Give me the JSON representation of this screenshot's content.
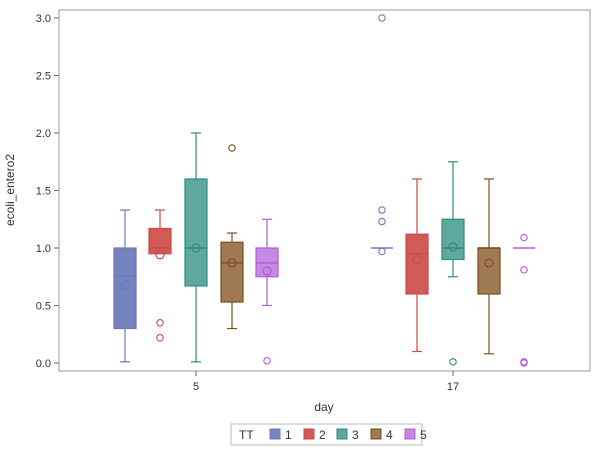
{
  "chart_data": {
    "type": "box",
    "xlabel": "day",
    "ylabel": "ecoli_entero2",
    "categories": [
      "5",
      "17"
    ],
    "ylim": [
      0,
      3
    ],
    "yticks": [
      "0.0",
      "0.5",
      "1.0",
      "1.5",
      "2.0",
      "2.5",
      "3.0"
    ],
    "ytick_values": [
      0,
      0.5,
      1.0,
      1.5,
      2.0,
      2.5,
      3.0
    ],
    "grid": false,
    "legend": {
      "title": "TT",
      "position": "bottom",
      "entries": [
        "1",
        "2",
        "3",
        "4",
        "5"
      ]
    },
    "series": [
      {
        "name": "1",
        "color": "#6b7ab5",
        "fill": "#7584bf",
        "boxes": [
          {
            "category": "5",
            "min": 0.01,
            "q1": 0.3,
            "median": 0.76,
            "q3": 1.0,
            "max": 1.33,
            "mean": 0.68,
            "outliers": []
          },
          {
            "category": "17",
            "min": 1.0,
            "q1": 1.0,
            "median": 1.0,
            "q3": 1.0,
            "max": 1.0,
            "mean": null,
            "outliers": [
              3.0,
              1.33,
              1.23,
              0.97
            ]
          }
        ]
      },
      {
        "name": "2",
        "color": "#c94a48",
        "fill": "#d15a57",
        "boxes": [
          {
            "category": "5",
            "min": 0.95,
            "q1": 0.95,
            "median": 1.0,
            "q3": 1.17,
            "max": 1.33,
            "mean": 0.94,
            "outliers": [
              0.35,
              0.22
            ]
          },
          {
            "category": "17",
            "min": 0.1,
            "q1": 0.6,
            "median": 0.95,
            "q3": 1.12,
            "max": 1.6,
            "mean": 0.9,
            "outliers": []
          }
        ]
      },
      {
        "name": "3",
        "color": "#2e8b80",
        "fill": "#5fa8a0",
        "boxes": [
          {
            "category": "5",
            "min": 0.01,
            "q1": 0.67,
            "median": 1.0,
            "q3": 1.6,
            "max": 2.0,
            "mean": 1.0,
            "outliers": []
          },
          {
            "category": "17",
            "min": 0.75,
            "q1": 0.9,
            "median": 1.0,
            "q3": 1.25,
            "max": 1.75,
            "mean": 1.01,
            "outliers": [
              0.01
            ]
          }
        ]
      },
      {
        "name": "4",
        "color": "#7a5020",
        "fill": "#a07a52",
        "boxes": [
          {
            "category": "5",
            "min": 0.3,
            "q1": 0.53,
            "median": 0.87,
            "q3": 1.05,
            "max": 1.13,
            "mean": 0.87,
            "outliers": [
              1.87
            ]
          },
          {
            "category": "17",
            "min": 0.08,
            "q1": 0.6,
            "median": 1.0,
            "q3": 1.0,
            "max": 1.6,
            "mean": 0.87,
            "outliers": []
          }
        ]
      },
      {
        "name": "5",
        "color": "#b05cd6",
        "fill": "#c58ae0",
        "boxes": [
          {
            "category": "5",
            "min": 0.5,
            "q1": 0.75,
            "median": 0.87,
            "q3": 1.0,
            "max": 1.25,
            "mean": 0.8,
            "outliers": [
              0.02
            ]
          },
          {
            "category": "17",
            "min": 1.0,
            "q1": 1.0,
            "median": 1.0,
            "q3": 1.0,
            "max": 1.0,
            "mean": null,
            "outliers": [
              1.09,
              0.81,
              0.01,
              0.0
            ]
          }
        ]
      }
    ]
  }
}
